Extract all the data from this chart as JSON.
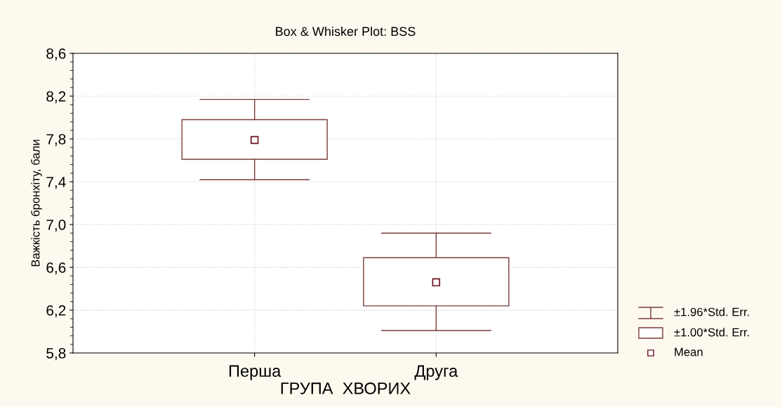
{
  "chart_data": {
    "type": "box",
    "title": "Box & Whisker Plot: BSS",
    "xlabel": "ГРУПА  ХВОРИХ",
    "ylabel": "Важкість бронхіту, бали",
    "categories": [
      "Перша",
      "Друга"
    ],
    "boxes": [
      {
        "low": 7.42,
        "q1": 7.61,
        "q3": 7.98,
        "high": 8.17,
        "mean": 7.79
      },
      {
        "low": 6.01,
        "q1": 6.24,
        "q3": 6.69,
        "high": 6.92,
        "mean": 6.46
      }
    ],
    "color": "#7a3b3b",
    "ylim": [
      5.8,
      8.6
    ],
    "yticks": [
      {
        "value": 5.8,
        "label": "5,8"
      },
      {
        "value": 6.2,
        "label": "6,2"
      },
      {
        "value": 6.6,
        "label": "6,6"
      },
      {
        "value": 7.0,
        "label": "7,0"
      },
      {
        "value": 7.4,
        "label": "7,4"
      },
      {
        "value": 7.8,
        "label": "7,8"
      },
      {
        "value": 8.2,
        "label": "8,2"
      },
      {
        "value": 8.6,
        "label": "8,6"
      }
    ],
    "grid": true,
    "marker": "square",
    "annotations": [
      "±1.96*Std. Err.",
      "±1.00*Std. Err.",
      "Mean"
    ]
  }
}
